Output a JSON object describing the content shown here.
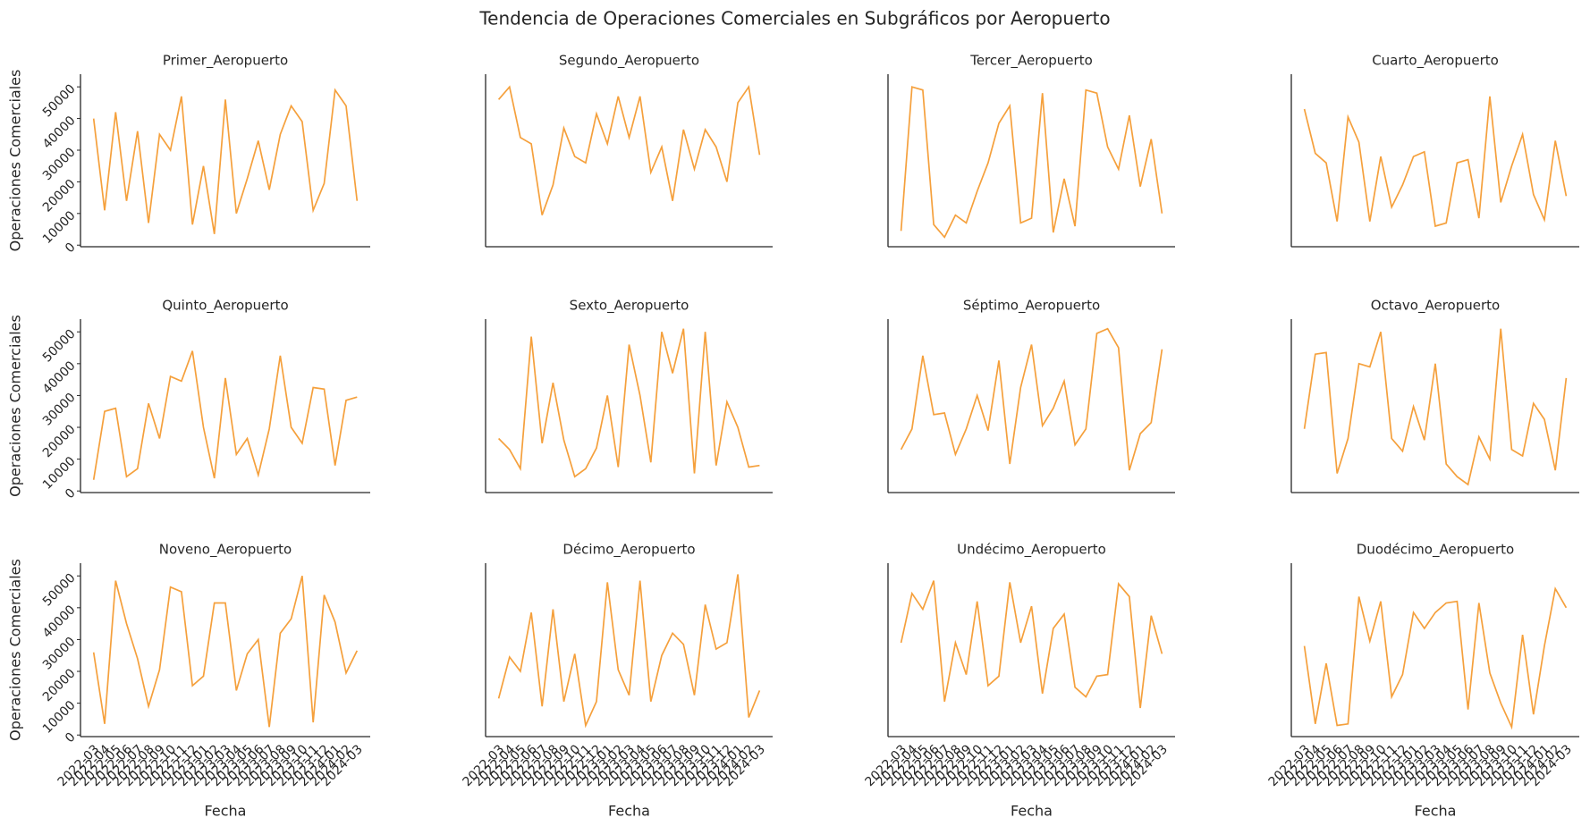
{
  "title": "Tendencia de Operaciones Comerciales en Subgráficos por Aeropuerto",
  "chart_data": [
    {
      "type": "line",
      "title": "Primer_Aeropuerto",
      "ylabel": "Operaciones Comerciales",
      "color": "#f5a03c",
      "x": [
        "2022-03",
        "2022-04",
        "2022-05",
        "2022-06",
        "2022-07",
        "2022-08",
        "2022-09",
        "2022-10",
        "2022-11",
        "2022-12",
        "2023-01",
        "2023-02",
        "2023-03",
        "2023-04",
        "2023-05",
        "2023-06",
        "2023-07",
        "2023-08",
        "2023-09",
        "2023-10",
        "2023-11",
        "2023-12",
        "2024-01",
        "2024-02",
        "2024-03"
      ],
      "values": [
        40000,
        11000,
        42000,
        14000,
        36000,
        7000,
        35000,
        30000,
        47000,
        6500,
        25000,
        3500,
        46000,
        10000,
        21000,
        33000,
        17500,
        35000,
        44000,
        39000,
        11000,
        19500,
        49000,
        44000,
        14000
      ],
      "ylim": [
        -500,
        54000
      ],
      "yticks": [
        0,
        10000,
        20000,
        30000,
        40000,
        50000
      ]
    },
    {
      "type": "line",
      "title": "Segundo_Aeropuerto",
      "color": "#f5a03c",
      "x": [
        "2022-03",
        "2022-04",
        "2022-05",
        "2022-06",
        "2022-07",
        "2022-08",
        "2022-09",
        "2022-10",
        "2022-11",
        "2022-12",
        "2023-01",
        "2023-02",
        "2023-03",
        "2023-04",
        "2023-05",
        "2023-06",
        "2023-07",
        "2023-08",
        "2023-09",
        "2023-10",
        "2023-11",
        "2023-12",
        "2024-01",
        "2024-02",
        "2024-03"
      ],
      "values": [
        46000,
        50000,
        34000,
        32000,
        9500,
        19000,
        37000,
        28000,
        26000,
        41500,
        32000,
        47000,
        34000,
        47000,
        23000,
        31000,
        14000,
        36500,
        24000,
        36500,
        31000,
        20000,
        45000,
        50000,
        28500
      ],
      "ylim": [
        -500,
        54000
      ]
    },
    {
      "type": "line",
      "title": "Tercer_Aeropuerto",
      "color": "#f5a03c",
      "x": [
        "2022-03",
        "2022-04",
        "2022-05",
        "2022-06",
        "2022-07",
        "2022-08",
        "2022-09",
        "2022-10",
        "2022-11",
        "2022-12",
        "2023-01",
        "2023-02",
        "2023-03",
        "2023-04",
        "2023-05",
        "2023-06",
        "2023-07",
        "2023-08",
        "2023-09",
        "2023-10",
        "2023-11",
        "2023-12",
        "2024-01",
        "2024-02",
        "2024-03"
      ],
      "values": [
        4500,
        50000,
        49000,
        6500,
        2500,
        9500,
        7000,
        17000,
        26000,
        38500,
        44000,
        7000,
        8500,
        48000,
        4000,
        21000,
        6000,
        49000,
        48000,
        31000,
        24000,
        41000,
        18500,
        33500,
        10000
      ],
      "ylim": [
        -500,
        54000
      ]
    },
    {
      "type": "line",
      "title": "Cuarto_Aeropuerto",
      "color": "#f5a03c",
      "x": [
        "2022-03",
        "2022-04",
        "2022-05",
        "2022-06",
        "2022-07",
        "2022-08",
        "2022-09",
        "2022-10",
        "2022-11",
        "2022-12",
        "2023-01",
        "2023-02",
        "2023-03",
        "2023-04",
        "2023-05",
        "2023-06",
        "2023-07",
        "2023-08",
        "2023-09",
        "2023-10",
        "2023-11",
        "2023-12",
        "2024-01",
        "2024-02",
        "2024-03"
      ],
      "values": [
        43000,
        29000,
        26000,
        7500,
        40500,
        32500,
        7500,
        28000,
        12000,
        19000,
        28000,
        29500,
        6000,
        7000,
        26000,
        27000,
        8500,
        47000,
        13500,
        25000,
        35000,
        16000,
        8000,
        33000,
        15500
      ],
      "ylim": [
        -500,
        54000
      ]
    },
    {
      "type": "line",
      "title": "Quinto_Aeropuerto",
      "ylabel": "Operaciones Comerciales",
      "color": "#f5a03c",
      "x": [
        "2022-03",
        "2022-04",
        "2022-05",
        "2022-06",
        "2022-07",
        "2022-08",
        "2022-09",
        "2022-10",
        "2022-11",
        "2022-12",
        "2023-01",
        "2023-02",
        "2023-03",
        "2023-04",
        "2023-05",
        "2023-06",
        "2023-07",
        "2023-08",
        "2023-09",
        "2023-10",
        "2023-11",
        "2023-12",
        "2024-01",
        "2024-02",
        "2024-03"
      ],
      "values": [
        3500,
        25000,
        26000,
        4500,
        7000,
        27500,
        16500,
        36000,
        34500,
        44000,
        20000,
        4000,
        35500,
        11500,
        16500,
        5000,
        19500,
        42500,
        20000,
        15000,
        32500,
        32000,
        8000,
        28500,
        29500
      ],
      "ylim": [
        -500,
        54000
      ],
      "yticks": [
        0,
        10000,
        20000,
        30000,
        40000,
        50000
      ]
    },
    {
      "type": "line",
      "title": "Sexto_Aeropuerto",
      "color": "#f5a03c",
      "x": [
        "2022-03",
        "2022-04",
        "2022-05",
        "2022-06",
        "2022-07",
        "2022-08",
        "2022-09",
        "2022-10",
        "2022-11",
        "2022-12",
        "2023-01",
        "2023-02",
        "2023-03",
        "2023-04",
        "2023-05",
        "2023-06",
        "2023-07",
        "2023-08",
        "2023-09",
        "2023-10",
        "2023-11",
        "2023-12",
        "2024-01",
        "2024-02",
        "2024-03"
      ],
      "values": [
        16500,
        13000,
        7000,
        48500,
        15000,
        34000,
        16000,
        4500,
        7000,
        13500,
        30000,
        7500,
        46000,
        30000,
        9000,
        50000,
        37000,
        51000,
        5500,
        50000,
        8000,
        28000,
        20000,
        7500,
        8000
      ],
      "ylim": [
        -500,
        54000
      ]
    },
    {
      "type": "line",
      "title": "Séptimo_Aeropuerto",
      "color": "#f5a03c",
      "x": [
        "2022-03",
        "2022-04",
        "2022-05",
        "2022-06",
        "2022-07",
        "2022-08",
        "2022-09",
        "2022-10",
        "2022-11",
        "2022-12",
        "2023-01",
        "2023-02",
        "2023-03",
        "2023-04",
        "2023-05",
        "2023-06",
        "2023-07",
        "2023-08",
        "2023-09",
        "2023-10",
        "2023-11",
        "2023-12",
        "2024-01",
        "2024-02",
        "2024-03"
      ],
      "values": [
        13000,
        19500,
        42500,
        24000,
        24500,
        11500,
        19500,
        30000,
        19000,
        41000,
        8500,
        32500,
        46000,
        20500,
        26000,
        34500,
        14500,
        19500,
        49500,
        51000,
        45000,
        6500,
        18000,
        21500,
        44500
      ],
      "ylim": [
        -500,
        54000
      ]
    },
    {
      "type": "line",
      "title": "Octavo_Aeropuerto",
      "color": "#f5a03c",
      "x": [
        "2022-03",
        "2022-04",
        "2022-05",
        "2022-06",
        "2022-07",
        "2022-08",
        "2022-09",
        "2022-10",
        "2022-11",
        "2022-12",
        "2023-01",
        "2023-02",
        "2023-03",
        "2023-04",
        "2023-05",
        "2023-06",
        "2023-07",
        "2023-08",
        "2023-09",
        "2023-10",
        "2023-11",
        "2023-12",
        "2024-01",
        "2024-02",
        "2024-03"
      ],
      "values": [
        19500,
        43000,
        43500,
        5500,
        16500,
        40000,
        39000,
        50000,
        16500,
        12500,
        26500,
        16000,
        40000,
        8500,
        4500,
        2000,
        17000,
        10000,
        51000,
        13000,
        11000,
        27500,
        22500,
        6500,
        35500
      ],
      "ylim": [
        -500,
        54000
      ]
    },
    {
      "type": "line",
      "title": "Noveno_Aeropuerto",
      "ylabel": "Operaciones Comerciales",
      "xlabel": "Fecha",
      "color": "#f5a03c",
      "x": [
        "2022-03",
        "2022-04",
        "2022-05",
        "2022-06",
        "2022-07",
        "2022-08",
        "2022-09",
        "2022-10",
        "2022-11",
        "2022-12",
        "2023-01",
        "2023-02",
        "2023-03",
        "2023-04",
        "2023-05",
        "2023-06",
        "2023-07",
        "2023-08",
        "2023-09",
        "2023-10",
        "2023-11",
        "2023-12",
        "2024-01",
        "2024-02",
        "2024-03"
      ],
      "values": [
        26000,
        3500,
        48500,
        35000,
        24000,
        9000,
        20500,
        46500,
        45000,
        15500,
        18500,
        41500,
        41500,
        14000,
        25500,
        30000,
        2500,
        32000,
        36500,
        50000,
        4000,
        44000,
        35500,
        19500,
        26500
      ],
      "ylim": [
        -500,
        54000
      ],
      "yticks": [
        0,
        10000,
        20000,
        30000,
        40000,
        50000
      ],
      "xticklabels": true
    },
    {
      "type": "line",
      "title": "Décimo_Aeropuerto",
      "xlabel": "Fecha",
      "color": "#f5a03c",
      "x": [
        "2022-03",
        "2022-04",
        "2022-05",
        "2022-06",
        "2022-07",
        "2022-08",
        "2022-09",
        "2022-10",
        "2022-11",
        "2022-12",
        "2023-01",
        "2023-02",
        "2023-03",
        "2023-04",
        "2023-05",
        "2023-06",
        "2023-07",
        "2023-08",
        "2023-09",
        "2023-10",
        "2023-11",
        "2023-12",
        "2024-01",
        "2024-02",
        "2024-03"
      ],
      "values": [
        11500,
        24500,
        20000,
        38500,
        9000,
        39500,
        10500,
        25500,
        3000,
        10500,
        48000,
        20500,
        12500,
        48500,
        10500,
        25000,
        32000,
        28500,
        12500,
        41000,
        27000,
        29000,
        50500,
        5500,
        14000
      ],
      "ylim": [
        -500,
        54000
      ],
      "xticklabels": true
    },
    {
      "type": "line",
      "title": "Undécimo_Aeropuerto",
      "xlabel": "Fecha",
      "color": "#f5a03c",
      "x": [
        "2022-03",
        "2022-04",
        "2022-05",
        "2022-06",
        "2022-07",
        "2022-08",
        "2022-09",
        "2022-10",
        "2022-11",
        "2022-12",
        "2023-01",
        "2023-02",
        "2023-03",
        "2023-04",
        "2023-05",
        "2023-06",
        "2023-07",
        "2023-08",
        "2023-09",
        "2023-10",
        "2023-11",
        "2023-12",
        "2024-01",
        "2024-02",
        "2024-03"
      ],
      "values": [
        29000,
        44500,
        39500,
        48500,
        10500,
        29000,
        19000,
        42000,
        15500,
        18500,
        48000,
        29000,
        40500,
        13000,
        33500,
        38000,
        15000,
        12000,
        18500,
        19000,
        47500,
        43500,
        8500,
        37500,
        25500
      ],
      "ylim": [
        -500,
        54000
      ],
      "xticklabels": true
    },
    {
      "type": "line",
      "title": "Duodécimo_Aeropuerto",
      "xlabel": "Fecha",
      "color": "#f5a03c",
      "x": [
        "2022-03",
        "2022-04",
        "2022-05",
        "2022-06",
        "2022-07",
        "2022-08",
        "2022-09",
        "2022-10",
        "2022-11",
        "2022-12",
        "2023-01",
        "2023-02",
        "2023-03",
        "2023-04",
        "2023-05",
        "2023-06",
        "2023-07",
        "2023-08",
        "2023-09",
        "2023-10",
        "2023-11",
        "2023-12",
        "2024-01",
        "2024-02",
        "2024-03"
      ],
      "values": [
        28000,
        3500,
        22500,
        3000,
        3500,
        43500,
        29500,
        42000,
        12000,
        19000,
        38500,
        33500,
        38500,
        41500,
        42000,
        8000,
        41500,
        19500,
        10000,
        2500,
        31500,
        6500,
        28000,
        46000,
        40000
      ],
      "ylim": [
        -500,
        54000
      ],
      "xticklabels": true
    }
  ]
}
